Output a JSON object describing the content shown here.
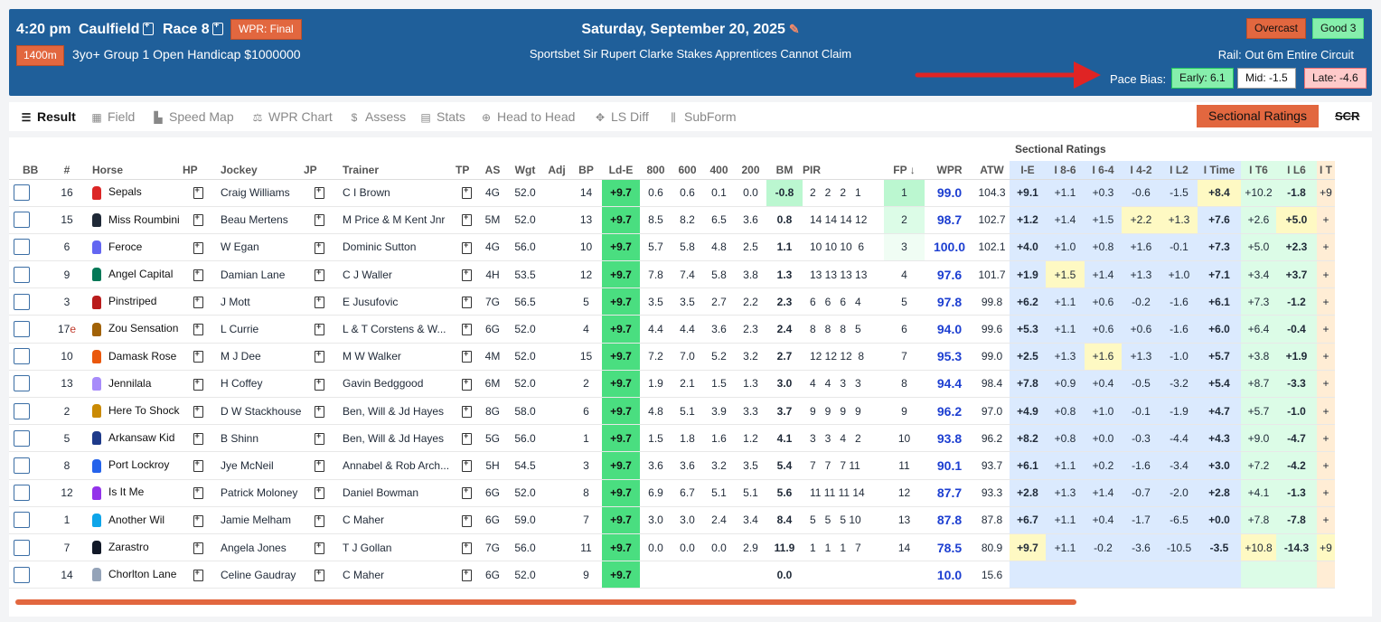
{
  "header": {
    "time": "4:20 pm",
    "course": "Caulfield",
    "race": "Race 8",
    "wpr_status": "WPR: Final",
    "distance": "1400m",
    "conditions": "3yo+ Group 1 Open Handicap $1000000",
    "date": "Saturday, September 20, 2025",
    "race_name": "Sportsbet Sir Rupert Clarke Stakes Apprentices Cannot Claim",
    "weather": "Overcast",
    "track": "Good 3",
    "rail": "Rail: Out 6m Entire Circuit",
    "pace_bias_label": "Pace Bias:",
    "pace_early": "Early: 6.1",
    "pace_mid": "Mid: -1.5",
    "pace_late": "Late: -4.6"
  },
  "tabs": [
    "Result",
    "Field",
    "Speed Map",
    "WPR Chart",
    "Assess",
    "Stats",
    "Head to Head",
    "LS Diff",
    "SubForm"
  ],
  "toolbar": {
    "sectional_button": "Sectional Ratings",
    "scr": "SCR"
  },
  "table": {
    "sectional_header": "Sectional Ratings",
    "columns": [
      "BB",
      "#",
      "Horse",
      "HP",
      "Jockey",
      "JP",
      "Trainer",
      "TP",
      "AS",
      "Wgt",
      "Adj",
      "BP",
      "Ld-E",
      "800",
      "600",
      "400",
      "200",
      "BM",
      "PIR",
      "FP ↓",
      "WPR",
      "ATW",
      "I-E",
      "I 8-6",
      "I 6-4",
      "I 4-2",
      "I L2",
      "I Time",
      "I T6",
      "I L6",
      "I T"
    ],
    "rows": [
      {
        "num": "16",
        "e": "",
        "horse": "Sepals",
        "silk": "#dc2626",
        "jockey": "Craig Williams",
        "trainer": "C I Brown",
        "as": "4G",
        "wgt": "52.0",
        "adj": "",
        "bp": "14",
        "lde": "+9.7",
        "s800": "0.6",
        "s600": "0.6",
        "s400": "0.1",
        "s200": "0.0",
        "bm": "-0.8",
        "pir": "2   2   2   1",
        "fp": "1",
        "wpr": "99.0",
        "atw": "104.3",
        "ie": "+9.1",
        "i86": "+1.1",
        "i64": "+0.3",
        "i42": "-0.6",
        "il2": "-1.5",
        "itime": "+8.4",
        "it6": "+10.2",
        "il6": "-1.8",
        "it": "+9"
      },
      {
        "num": "15",
        "e": "",
        "horse": "Miss Roumbini",
        "silk": "#1f2937",
        "jockey": "Beau Mertens",
        "trainer": "M Price & M Kent Jnr",
        "as": "5M",
        "wgt": "52.0",
        "adj": "",
        "bp": "13",
        "lde": "+9.7",
        "s800": "8.5",
        "s600": "8.2",
        "s400": "6.5",
        "s200": "3.6",
        "bm": "0.8",
        "pir": "14 14 14 12",
        "fp": "2",
        "wpr": "98.7",
        "atw": "102.7",
        "ie": "+1.2",
        "i86": "+1.4",
        "i64": "+1.5",
        "i42": "+2.2",
        "il2": "+1.3",
        "itime": "+7.6",
        "it6": "+2.6",
        "il6": "+5.0",
        "it": "+"
      },
      {
        "num": "6",
        "e": "",
        "horse": "Feroce",
        "silk": "#6366f1",
        "jockey": "W Egan",
        "trainer": "Dominic Sutton",
        "as": "4G",
        "wgt": "56.0",
        "adj": "",
        "bp": "10",
        "lde": "+9.7",
        "s800": "5.7",
        "s600": "5.8",
        "s400": "4.8",
        "s200": "2.5",
        "bm": "1.1",
        "pir": "10 10 10  6",
        "fp": "3",
        "wpr": "100.0",
        "atw": "102.1",
        "ie": "+4.0",
        "i86": "+1.0",
        "i64": "+0.8",
        "i42": "+1.6",
        "il2": "-0.1",
        "itime": "+7.3",
        "it6": "+5.0",
        "il6": "+2.3",
        "it": "+"
      },
      {
        "num": "9",
        "e": "",
        "horse": "Angel Capital",
        "silk": "#047857",
        "jockey": "Damian Lane",
        "trainer": "C J Waller",
        "as": "4H",
        "wgt": "53.5",
        "adj": "",
        "bp": "12",
        "lde": "+9.7",
        "s800": "7.8",
        "s600": "7.4",
        "s400": "5.8",
        "s200": "3.8",
        "bm": "1.3",
        "pir": "13 13 13 13",
        "fp": "4",
        "wpr": "97.6",
        "atw": "101.7",
        "ie": "+1.9",
        "i86": "+1.5",
        "i64": "+1.4",
        "i42": "+1.3",
        "il2": "+1.0",
        "itime": "+7.1",
        "it6": "+3.4",
        "il6": "+3.7",
        "it": "+"
      },
      {
        "num": "3",
        "e": "",
        "horse": "Pinstriped",
        "silk": "#b91c1c",
        "jockey": "J Mott",
        "trainer": "E Jusufovic",
        "as": "7G",
        "wgt": "56.5",
        "adj": "",
        "bp": "5",
        "lde": "+9.7",
        "s800": "3.5",
        "s600": "3.5",
        "s400": "2.7",
        "s200": "2.2",
        "bm": "2.3",
        "pir": "6   6   6   4",
        "fp": "5",
        "wpr": "97.8",
        "atw": "99.8",
        "ie": "+6.2",
        "i86": "+1.1",
        "i64": "+0.6",
        "i42": "-0.2",
        "il2": "-1.6",
        "itime": "+6.1",
        "it6": "+7.3",
        "il6": "-1.2",
        "it": "+"
      },
      {
        "num": "17",
        "e": "e",
        "horse": "Zou Sensation",
        "silk": "#a16207",
        "jockey": "L Currie",
        "trainer": "L & T Corstens & W...",
        "as": "6G",
        "wgt": "52.0",
        "adj": "",
        "bp": "4",
        "lde": "+9.7",
        "s800": "4.4",
        "s600": "4.4",
        "s400": "3.6",
        "s200": "2.3",
        "bm": "2.4",
        "pir": "8   8   8   5",
        "fp": "6",
        "wpr": "94.0",
        "atw": "99.6",
        "ie": "+5.3",
        "i86": "+1.1",
        "i64": "+0.6",
        "i42": "+0.6",
        "il2": "-1.6",
        "itime": "+6.0",
        "it6": "+6.4",
        "il6": "-0.4",
        "it": "+"
      },
      {
        "num": "10",
        "e": "",
        "horse": "Damask Rose",
        "silk": "#ea580c",
        "jockey": "M J Dee",
        "trainer": "M W Walker",
        "as": "4M",
        "wgt": "52.0",
        "adj": "",
        "bp": "15",
        "lde": "+9.7",
        "s800": "7.2",
        "s600": "7.0",
        "s400": "5.2",
        "s200": "3.2",
        "bm": "2.7",
        "pir": "12 12 12  8",
        "fp": "7",
        "wpr": "95.3",
        "atw": "99.0",
        "ie": "+2.5",
        "i86": "+1.3",
        "i64": "+1.6",
        "i42": "+1.3",
        "il2": "-1.0",
        "itime": "+5.7",
        "it6": "+3.8",
        "il6": "+1.9",
        "it": "+"
      },
      {
        "num": "13",
        "e": "",
        "horse": "Jennilala",
        "silk": "#a78bfa",
        "jockey": "H Coffey",
        "trainer": "Gavin Bedggood",
        "as": "6M",
        "wgt": "52.0",
        "adj": "",
        "bp": "2",
        "lde": "+9.7",
        "s800": "1.9",
        "s600": "2.1",
        "s400": "1.5",
        "s200": "1.3",
        "bm": "3.0",
        "pir": "4   4   3   3",
        "fp": "8",
        "wpr": "94.4",
        "atw": "98.4",
        "ie": "+7.8",
        "i86": "+0.9",
        "i64": "+0.4",
        "i42": "-0.5",
        "il2": "-3.2",
        "itime": "+5.4",
        "it6": "+8.7",
        "il6": "-3.3",
        "it": "+"
      },
      {
        "num": "2",
        "e": "",
        "horse": "Here To Shock",
        "silk": "#ca8a04",
        "jockey": "D W Stackhouse",
        "trainer": "Ben, Will & Jd Hayes",
        "as": "8G",
        "wgt": "58.0",
        "adj": "",
        "bp": "6",
        "lde": "+9.7",
        "s800": "4.8",
        "s600": "5.1",
        "s400": "3.9",
        "s200": "3.3",
        "bm": "3.7",
        "pir": "9   9   9   9",
        "fp": "9",
        "wpr": "96.2",
        "atw": "97.0",
        "ie": "+4.9",
        "i86": "+0.8",
        "i64": "+1.0",
        "i42": "-0.1",
        "il2": "-1.9",
        "itime": "+4.7",
        "it6": "+5.7",
        "il6": "-1.0",
        "it": "+"
      },
      {
        "num": "5",
        "e": "",
        "horse": "Arkansaw Kid",
        "silk": "#1e3a8a",
        "jockey": "B Shinn",
        "trainer": "Ben, Will & Jd Hayes",
        "as": "5G",
        "wgt": "56.0",
        "adj": "",
        "bp": "1",
        "lde": "+9.7",
        "s800": "1.5",
        "s600": "1.8",
        "s400": "1.6",
        "s200": "1.2",
        "bm": "4.1",
        "pir": "3   3   4   2",
        "fp": "10",
        "wpr": "93.8",
        "atw": "96.2",
        "ie": "+8.2",
        "i86": "+0.8",
        "i64": "+0.0",
        "i42": "-0.3",
        "il2": "-4.4",
        "itime": "+4.3",
        "it6": "+9.0",
        "il6": "-4.7",
        "it": "+"
      },
      {
        "num": "8",
        "e": "",
        "horse": "Port Lockroy",
        "silk": "#2563eb",
        "jockey": "Jye McNeil",
        "trainer": "Annabel & Rob Arch...",
        "as": "5H",
        "wgt": "54.5",
        "adj": "",
        "bp": "3",
        "lde": "+9.7",
        "s800": "3.6",
        "s600": "3.6",
        "s400": "3.2",
        "s200": "3.5",
        "bm": "5.4",
        "pir": "7   7   7 11",
        "fp": "11",
        "wpr": "90.1",
        "atw": "93.7",
        "ie": "+6.1",
        "i86": "+1.1",
        "i64": "+0.2",
        "i42": "-1.6",
        "il2": "-3.4",
        "itime": "+3.0",
        "it6": "+7.2",
        "il6": "-4.2",
        "it": "+"
      },
      {
        "num": "12",
        "e": "",
        "horse": "Is It Me",
        "silk": "#9333ea",
        "jockey": "Patrick Moloney",
        "trainer": "Daniel Bowman",
        "as": "6G",
        "wgt": "52.0",
        "adj": "",
        "bp": "8",
        "lde": "+9.7",
        "s800": "6.9",
        "s600": "6.7",
        "s400": "5.1",
        "s200": "5.1",
        "bm": "5.6",
        "pir": "11 11 11 14",
        "fp": "12",
        "wpr": "87.7",
        "atw": "93.3",
        "ie": "+2.8",
        "i86": "+1.3",
        "i64": "+1.4",
        "i42": "-0.7",
        "il2": "-2.0",
        "itime": "+2.8",
        "it6": "+4.1",
        "il6": "-1.3",
        "it": "+"
      },
      {
        "num": "1",
        "e": "",
        "horse": "Another Wil",
        "silk": "#0ea5e9",
        "jockey": "Jamie Melham",
        "trainer": "C Maher",
        "as": "6G",
        "wgt": "59.0",
        "adj": "",
        "bp": "7",
        "lde": "+9.7",
        "s800": "3.0",
        "s600": "3.0",
        "s400": "2.4",
        "s200": "3.4",
        "bm": "8.4",
        "pir": "5   5   5 10",
        "fp": "13",
        "wpr": "87.8",
        "atw": "87.8",
        "ie": "+6.7",
        "i86": "+1.1",
        "i64": "+0.4",
        "i42": "-1.7",
        "il2": "-6.5",
        "itime": "+0.0",
        "it6": "+7.8",
        "il6": "-7.8",
        "it": "+"
      },
      {
        "num": "7",
        "e": "",
        "horse": "Zarastro",
        "silk": "#111827",
        "jockey": "Angela Jones",
        "trainer": "T J Gollan",
        "as": "7G",
        "wgt": "56.0",
        "adj": "",
        "bp": "11",
        "lde": "+9.7",
        "s800": "0.0",
        "s600": "0.0",
        "s400": "0.0",
        "s200": "2.9",
        "bm": "11.9",
        "pir": "1   1   1   7",
        "fp": "14",
        "wpr": "78.5",
        "atw": "80.9",
        "ie": "+9.7",
        "i86": "+1.1",
        "i64": "-0.2",
        "i42": "-3.6",
        "il2": "-10.5",
        "itime": "-3.5",
        "it6": "+10.8",
        "il6": "-14.3",
        "it": "+9"
      },
      {
        "num": "14",
        "e": "",
        "horse": "Chorlton Lane",
        "silk": "#94a3b8",
        "jockey": "Celine Gaudray",
        "trainer": "C Maher",
        "as": "6G",
        "wgt": "52.0",
        "adj": "",
        "bp": "9",
        "lde": "+9.7",
        "s800": "",
        "s600": "",
        "s400": "",
        "s200": "",
        "bm": "0.0",
        "pir": "",
        "fp": "",
        "wpr": "10.0",
        "atw": "15.6",
        "ie": "",
        "i86": "",
        "i64": "",
        "i42": "",
        "il2": "",
        "itime": "",
        "it6": "",
        "il6": "",
        "it": ""
      }
    ]
  }
}
